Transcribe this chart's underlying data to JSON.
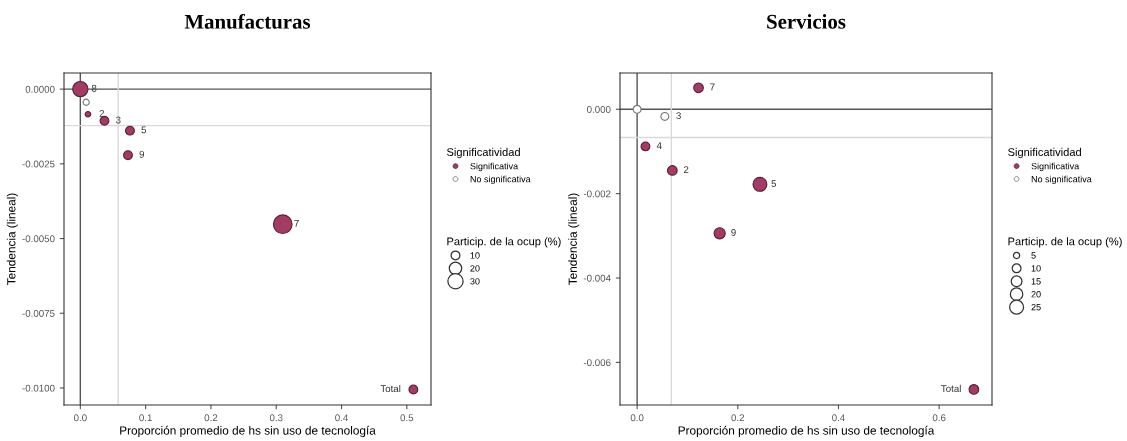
{
  "chart_data": [
    {
      "type": "bubble",
      "title": "Manufacturas",
      "xlabel": "Proporción promedio de hs sin uso de tecnología",
      "ylabel": "Tendencia (lineal)",
      "legend_title": "Significatividad",
      "legend": "right",
      "marker": "circle",
      "grid": false,
      "xlim": [
        -0.025,
        0.537
      ],
      "ylim": [
        -0.01057,
        0.00054
      ],
      "xticks": [
        {
          "value": 0,
          "label": "0.0"
        },
        {
          "value": 0.1,
          "label": "0.1"
        },
        {
          "value": 0.2,
          "label": "0.2"
        },
        {
          "value": 0.3,
          "label": "0.3"
        },
        {
          "value": 0.4,
          "label": "0.4"
        },
        {
          "value": 0.5,
          "label": "0.5"
        }
      ],
      "yticks": [
        {
          "value": 0,
          "label": "0.0000"
        },
        {
          "value": -0.0025,
          "label": "-0.0025"
        },
        {
          "value": -0.005,
          "label": "-0.0050"
        },
        {
          "value": -0.0075,
          "label": "-0.0075"
        },
        {
          "value": -0.01,
          "label": "-0.0100"
        }
      ],
      "size_legend": [
        10,
        20,
        30
      ],
      "series": [
        {
          "name": "Significativa",
          "color": "#a33c64",
          "x": [
            0.0,
            0.0117,
            0.037,
            0.076,
            0.073,
            0.31,
            0.51
          ],
          "values": [
            0.0,
            -0.00084,
            -0.00106,
            -0.00139,
            -0.00221,
            -0.00452,
            -0.01005
          ],
          "sizes": [
            30,
            4,
            10,
            10,
            10,
            45,
            10
          ]
        },
        {
          "name": "No significativa",
          "color": "#ffffff",
          "x": [
            0.009
          ],
          "values": [
            -0.00044
          ],
          "sizes": [
            5
          ]
        }
      ],
      "ref_lines": [
        {
          "axis": "x",
          "value": 0,
          "color": "#555555"
        },
        {
          "axis": "y",
          "value": 0,
          "color": "#555555"
        },
        {
          "axis": "x",
          "value": 0.058,
          "color": "#d9d9d9"
        },
        {
          "axis": "y",
          "value": -0.00122,
          "color": "#d9d9d9"
        }
      ],
      "annotations": [
        "Particip. de la ocup (%)",
        {
          "text": "8",
          "x": 0.0,
          "y": 0.0
        },
        {
          "text": "2",
          "x": 0.0117,
          "y": -0.00084
        },
        {
          "text": "3",
          "x": 0.037,
          "y": -0.00106
        },
        {
          "text": "5",
          "x": 0.076,
          "y": -0.00139
        },
        {
          "text": "9",
          "x": 0.073,
          "y": -0.00221
        },
        {
          "text": "7",
          "x": 0.31,
          "y": -0.00452
        },
        {
          "text": "Total",
          "x": 0.51,
          "y": -0.01005
        }
      ]
    },
    {
      "type": "bubble",
      "title": "Servicios",
      "xlabel": "Proporción promedio de hs sin uso de tecnología",
      "ylabel": "Tendencia (lineal)",
      "legend_title": "Significatividad",
      "legend": "right",
      "marker": "circle",
      "grid": false,
      "xlim": [
        -0.034,
        0.705
      ],
      "ylim": [
        -0.00701,
        0.00086
      ],
      "xticks": [
        {
          "value": 0,
          "label": "0.0"
        },
        {
          "value": 0.2,
          "label": "0.2"
        },
        {
          "value": 0.4,
          "label": "0.4"
        },
        {
          "value": 0.6,
          "label": "0.6"
        }
      ],
      "yticks": [
        {
          "value": 0,
          "label": "0.000"
        },
        {
          "value": -0.002,
          "label": "-0.002"
        },
        {
          "value": -0.004,
          "label": "-0.004"
        },
        {
          "value": -0.006,
          "label": "-0.006"
        }
      ],
      "size_legend": [
        5,
        10,
        15,
        20,
        25
      ],
      "series": [
        {
          "name": "Significativa",
          "color": "#a33c64",
          "x": [
            0.122,
            0.0166,
            0.07,
            0.244,
            0.164,
            0.669
          ],
          "values": [
            0.00051,
            -0.00088,
            -0.00145,
            -0.00178,
            -0.00294,
            -0.00664
          ],
          "sizes": [
            12,
            10,
            12,
            25,
            16,
            12
          ]
        },
        {
          "name": "No significativa",
          "color": "#ffffff",
          "x": [
            0.0,
            0.055
          ],
          "values": [
            0.0,
            -0.00017
          ],
          "sizes": [
            8,
            8
          ]
        }
      ],
      "ref_lines": [
        {
          "axis": "x",
          "value": 0,
          "color": "#555555"
        },
        {
          "axis": "y",
          "value": 0,
          "color": "#555555"
        },
        {
          "axis": "x",
          "value": 0.068,
          "color": "#d9d9d9"
        },
        {
          "axis": "y",
          "value": -0.00067,
          "color": "#d9d9d9"
        }
      ],
      "annotations": [
        "Particip. de la ocup (%)",
        {
          "text": "7",
          "x": 0.122,
          "y": 0.00051
        },
        {
          "text": "3",
          "x": 0.055,
          "y": -0.00017
        },
        {
          "text": "4",
          "x": 0.0166,
          "y": -0.00088
        },
        {
          "text": "2",
          "x": 0.07,
          "y": -0.00145
        },
        {
          "text": "5",
          "x": 0.244,
          "y": -0.00178
        },
        {
          "text": "9",
          "x": 0.164,
          "y": -0.00294
        },
        {
          "text": "Total",
          "x": 0.669,
          "y": -0.00664
        }
      ]
    }
  ]
}
